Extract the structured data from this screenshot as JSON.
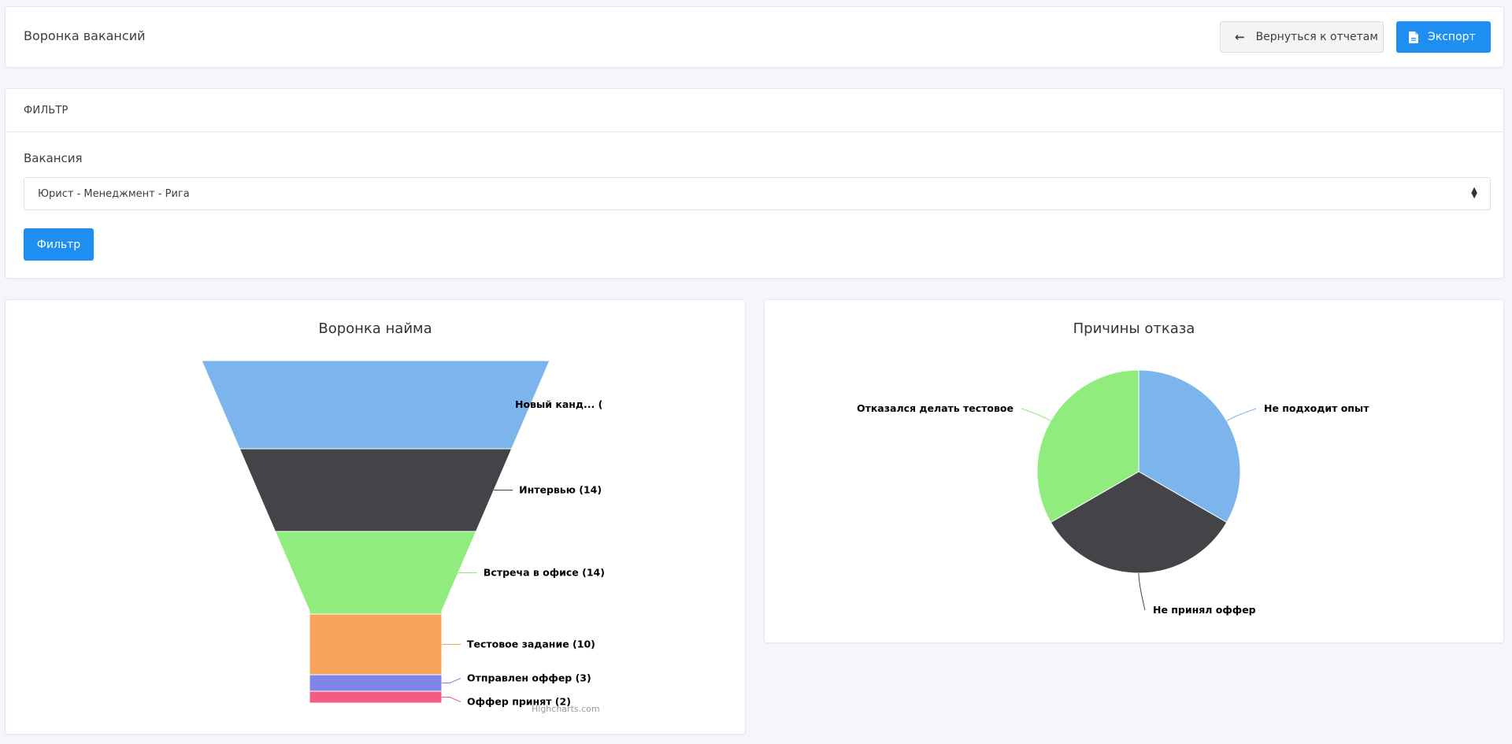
{
  "header": {
    "title": "Воронка вакансий",
    "back_label": "Вернуться к отчетам",
    "export_label": "Экспорт"
  },
  "filter": {
    "title": "ФИЛЬТР",
    "vacancy_label": "Вакансия",
    "vacancy_value": "Юрист - Менеджмент - Рига",
    "button_label": "Фильтр"
  },
  "icons": {
    "back": "arrow-left-icon",
    "export": "file-icon",
    "select": "select-arrows-icon"
  },
  "colors": {
    "primary": "#1e8ff0",
    "series": [
      "#7cb5ec",
      "#434348",
      "#90ed7d",
      "#f7a35c",
      "#8085e9",
      "#f15c80"
    ]
  },
  "chart_data": [
    {
      "type": "funnel",
      "title": "Воронка найма",
      "categories": [
        "Новый канд... (",
        "Интервью (14)",
        "Встреча в офисе (14)",
        "Тестовое задание (10)",
        "Отправлен оффер (3)",
        "Оффер принят (2)"
      ],
      "values": [
        null,
        14,
        14,
        10,
        3,
        2
      ],
      "credits": "Highcharts.com"
    },
    {
      "type": "pie",
      "title": "Причины отказа",
      "categories": [
        "Не подходит опыт",
        "Не принял оффер",
        "Отказался делать тестовое"
      ],
      "values": [
        1,
        1,
        1
      ]
    }
  ]
}
